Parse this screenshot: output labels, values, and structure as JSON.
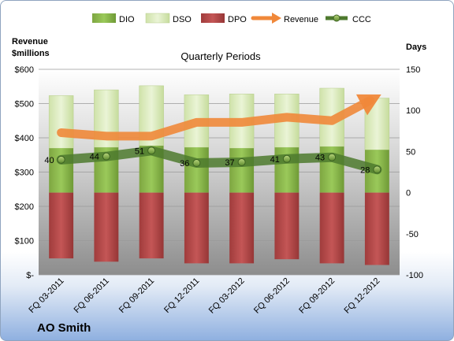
{
  "chart_data": {
    "type": "bar",
    "title": "Quarterly Periods",
    "company": "AO Smith",
    "left_axis_label": [
      "Revenue",
      "$millions"
    ],
    "right_axis_label": "Days",
    "left_ticks": [
      "$-",
      "$100",
      "$200",
      "$300",
      "$400",
      "$500",
      "$600"
    ],
    "right_ticks": [
      "-100",
      "-50",
      "0",
      "50",
      "100",
      "150"
    ],
    "left_ylim": [
      0,
      600
    ],
    "right_ylim": [
      -100,
      150
    ],
    "categories": [
      "FQ 03-2011",
      "FQ 06-2011",
      "FQ 09-2011",
      "FQ 12-2011",
      "FQ 03-2012",
      "FQ 06-2012",
      "FQ 09-2012",
      "FQ 12-2012"
    ],
    "legend": [
      "DIO",
      "DSO",
      "DPO",
      "Revenue",
      "CCC"
    ],
    "legend_position": "top",
    "series": [
      {
        "name": "DIO",
        "axis": "right",
        "color": "#8fb84e",
        "values": [
          54,
          55,
          57,
          55,
          54,
          55,
          56,
          52
        ]
      },
      {
        "name": "DSO",
        "axis": "right",
        "color": "#dcecc0",
        "values": [
          118,
          125,
          130,
          119,
          120,
          120,
          127,
          115
        ]
      },
      {
        "name": "DPO",
        "axis": "right",
        "color": "#b84a4a",
        "values": [
          -80,
          -84,
          -80,
          -86,
          -86,
          -81,
          -86,
          -88
        ]
      },
      {
        "name": "Revenue",
        "axis": "left",
        "color": "#f0883a",
        "values": [
          415,
          405,
          405,
          445,
          445,
          460,
          450,
          520
        ]
      },
      {
        "name": "CCC",
        "axis": "right",
        "color": "#4e7a2e",
        "values": [
          40,
          44,
          51,
          36,
          37,
          41,
          43,
          28
        ]
      }
    ],
    "ccc_labels": [
      "40",
      "44",
      "51",
      "36",
      "37",
      "41",
      "43",
      "28"
    ]
  }
}
